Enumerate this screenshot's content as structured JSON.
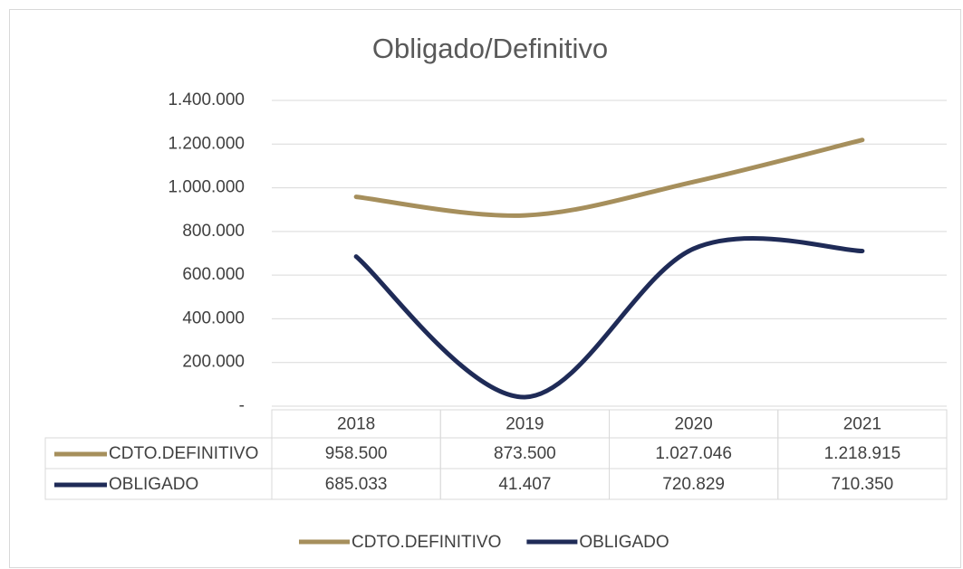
{
  "chart_data": {
    "type": "line",
    "title": "Obligado/Definitivo",
    "categories": [
      "2018",
      "2019",
      "2020",
      "2021"
    ],
    "series": [
      {
        "name": "CDTO.DEFINITIVO",
        "color": "#a68f5c",
        "values": [
          958500,
          873500,
          1027046,
          1218915
        ],
        "value_labels": [
          "958.500",
          "873.500",
          "1.027.046",
          "1.218.915"
        ]
      },
      {
        "name": "OBLIGADO",
        "color": "#1f2b57",
        "values": [
          685033,
          41407,
          720829,
          710350
        ],
        "value_labels": [
          "685.033",
          "41.407",
          "720.829",
          "710.350"
        ]
      }
    ],
    "ylim": [
      0,
      1400000
    ],
    "yticks": [
      {
        "value": 0,
        "label": "-"
      },
      {
        "value": 200000,
        "label": "200.000"
      },
      {
        "value": 400000,
        "label": "400.000"
      },
      {
        "value": 600000,
        "label": "600.000"
      },
      {
        "value": 800000,
        "label": "800.000"
      },
      {
        "value": 1000000,
        "label": "1.000.000"
      },
      {
        "value": 1200000,
        "label": "1.200.000"
      },
      {
        "value": 1400000,
        "label": "1.400.000"
      }
    ],
    "grid": true,
    "smooth": true,
    "data_table": true,
    "legend": "bottom"
  }
}
